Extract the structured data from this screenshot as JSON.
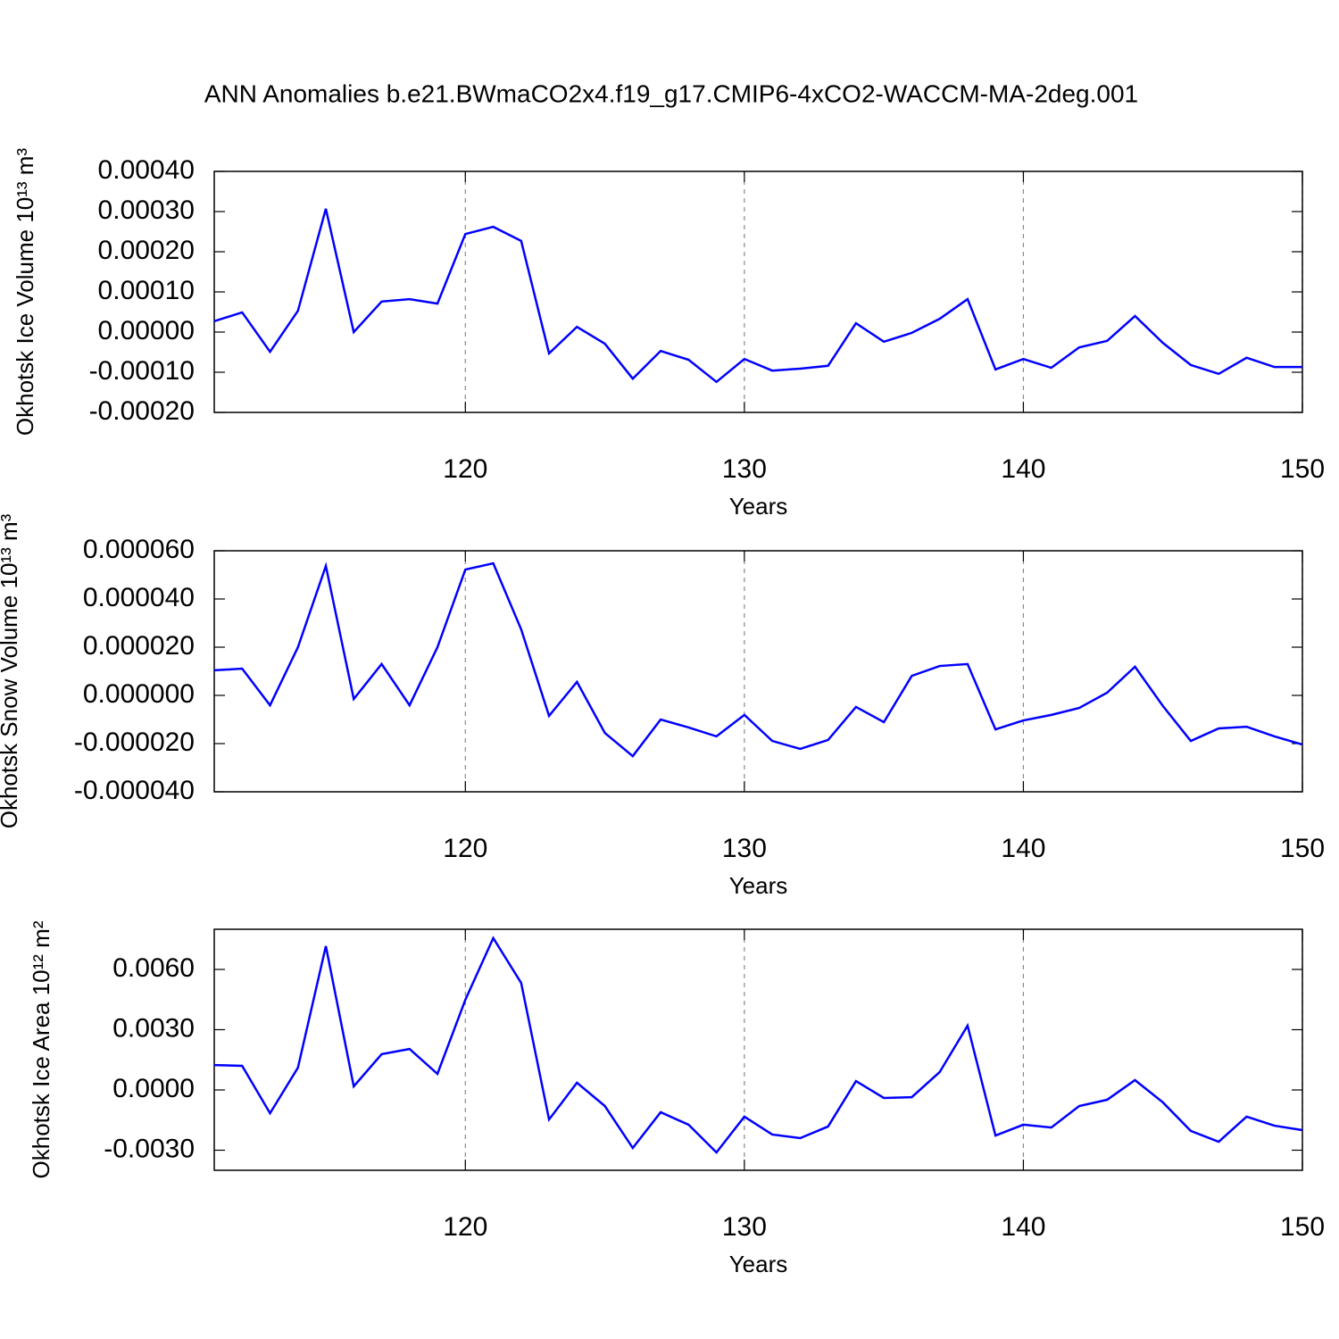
{
  "chart_data": [
    {
      "type": "line",
      "title": "ANN Anomalies b.e21.BWmaCO2x4.f19_g17.CMIP6-4xCO2-WACCM-MA-2deg.001",
      "ylabel": "Okhotsk Ice Volume 10¹³ m³",
      "xlabel": "Years",
      "color": "#0000ff",
      "grid": true,
      "x": [
        111,
        112,
        113,
        114,
        115,
        116,
        117,
        118,
        119,
        120,
        121,
        122,
        123,
        124,
        125,
        126,
        127,
        128,
        129,
        130,
        131,
        132,
        133,
        134,
        135,
        136,
        137,
        138,
        139,
        140,
        141,
        142,
        143,
        144,
        145,
        146,
        147,
        148,
        149,
        150
      ],
      "values": [
        2.7e-05,
        4.9e-05,
        -4.9e-05,
        5.3e-05,
        0.000307,
        0.0,
        7.6e-05,
        8.2e-05,
        7.1e-05,
        0.000244,
        0.000262,
        0.000227,
        -5.3e-05,
        1.3e-05,
        -2.9e-05,
        -0.000116,
        -4.7e-05,
        -6.9e-05,
        -0.000124,
        -6.7e-05,
        -9.6e-05,
        -9.1e-05,
        -8.4e-05,
        2.2e-05,
        -2.4e-05,
        -2e-06,
        3.3e-05,
        8.2e-05,
        -9.3e-05,
        -6.7e-05,
        -8.9e-05,
        -3.8e-05,
        -2.2e-05,
        4e-05,
        -2.7e-05,
        -8.2e-05,
        -0.000104,
        -6.4e-05,
        -8.7e-05,
        -8.7e-05
      ],
      "xlim": [
        111,
        150
      ],
      "xticks": [
        120,
        130,
        140,
        150
      ],
      "ylim": [
        -0.0002,
        0.0004
      ],
      "yticks": [
        {
          "value": 0.0004,
          "label": "0.00040"
        },
        {
          "value": 0.0003,
          "label": "0.00030"
        },
        {
          "value": 0.0002,
          "label": "0.00020"
        },
        {
          "value": 0.0001,
          "label": "0.00010"
        },
        {
          "value": 0,
          "label": "0.00000"
        },
        {
          "value": -0.0001,
          "label": "-0.00010"
        },
        {
          "value": -0.0002,
          "label": "-0.00020"
        }
      ]
    },
    {
      "type": "line",
      "ylabel": "Okhotsk Snow Volume 10¹³ m³",
      "xlabel": "Years",
      "color": "#0000ff",
      "grid": true,
      "x": [
        111,
        112,
        113,
        114,
        115,
        116,
        117,
        118,
        119,
        120,
        121,
        122,
        123,
        124,
        125,
        126,
        127,
        128,
        129,
        130,
        131,
        132,
        133,
        134,
        135,
        136,
        137,
        138,
        139,
        140,
        141,
        142,
        143,
        144,
        145,
        146,
        147,
        148,
        149,
        150
      ],
      "values": [
        1.04e-05,
        1.11e-05,
        -4.1e-06,
        2e-05,
        5.37e-05,
        -1.5e-06,
        1.3e-05,
        -4.1e-06,
        2e-05,
        5.22e-05,
        5.48e-05,
        2.74e-05,
        -8.5e-06,
        5.6e-06,
        -1.56e-05,
        -2.52e-05,
        -1e-05,
        -1.33e-05,
        -1.7e-05,
        -8.1e-06,
        -1.89e-05,
        -2.22e-05,
        -1.85e-05,
        -4.8e-06,
        -1.11e-05,
        8.1e-06,
        1.22e-05,
        1.3e-05,
        -1.41e-05,
        -1.04e-05,
        -8.1e-06,
        -5.2e-06,
        1.1e-06,
        1.19e-05,
        -4.4e-06,
        -1.89e-05,
        -1.37e-05,
        -1.3e-05,
        -1.7e-05,
        -2.04e-05
      ],
      "xlim": [
        111,
        150
      ],
      "xticks": [
        120,
        130,
        140,
        150
      ],
      "ylim": [
        -4e-05,
        6e-05
      ],
      "yticks": [
        {
          "value": 6e-05,
          "label": "0.000060"
        },
        {
          "value": 4e-05,
          "label": "0.000040"
        },
        {
          "value": 2e-05,
          "label": "0.000020"
        },
        {
          "value": 0,
          "label": "0.000000"
        },
        {
          "value": -2e-05,
          "label": "-0.000020"
        },
        {
          "value": -4e-05,
          "label": "-0.000040"
        }
      ]
    },
    {
      "type": "line",
      "ylabel": "Okhotsk Ice Area 10¹² m²",
      "xlabel": "Years",
      "color": "#0000ff",
      "grid": true,
      "x": [
        111,
        112,
        113,
        114,
        115,
        116,
        117,
        118,
        119,
        120,
        121,
        122,
        123,
        124,
        125,
        126,
        127,
        128,
        129,
        130,
        131,
        132,
        133,
        134,
        135,
        136,
        137,
        138,
        139,
        140,
        141,
        142,
        143,
        144,
        145,
        146,
        147,
        148,
        149,
        150
      ],
      "values": [
        0.00124,
        0.0012,
        -0.00116,
        0.00111,
        0.00716,
        0.00018,
        0.00178,
        0.00204,
        0.0008,
        0.00449,
        0.00756,
        0.00533,
        -0.00147,
        0.00036,
        -0.0008,
        -0.00289,
        -0.00111,
        -0.00173,
        -0.00311,
        -0.00133,
        -0.00222,
        -0.0024,
        -0.00182,
        0.00044,
        -0.0004,
        -0.00036,
        0.00089,
        0.0032,
        -0.00227,
        -0.00173,
        -0.00187,
        -0.0008,
        -0.00049,
        0.00049,
        -0.00062,
        -0.00204,
        -0.00258,
        -0.00133,
        -0.00178,
        -0.002
      ],
      "xlim": [
        111,
        150
      ],
      "xticks": [
        120,
        130,
        140,
        150
      ],
      "ylim": [
        -0.004,
        0.008
      ],
      "yticks": [
        {
          "value": 0.006,
          "label": "0.0060"
        },
        {
          "value": 0.003,
          "label": "0.0030"
        },
        {
          "value": 0,
          "label": "0.0000"
        },
        {
          "value": -0.003,
          "label": "-0.0030"
        }
      ]
    }
  ]
}
